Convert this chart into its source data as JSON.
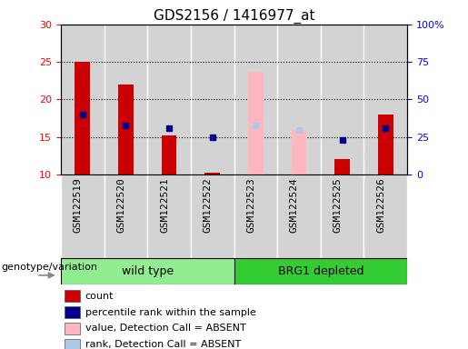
{
  "title": "GDS2156 / 1416977_at",
  "samples": [
    "GSM122519",
    "GSM122520",
    "GSM122521",
    "GSM122522",
    "GSM122523",
    "GSM122524",
    "GSM122525",
    "GSM122526"
  ],
  "ylim_left": [
    10,
    30
  ],
  "ylim_right": [
    0,
    100
  ],
  "yticks_left": [
    10,
    15,
    20,
    25,
    30
  ],
  "yticks_right": [
    0,
    25,
    50,
    75,
    100
  ],
  "ytick_labels_right": [
    "0",
    "25",
    "50",
    "75",
    "100%"
  ],
  "count_values": [
    25,
    22,
    15.2,
    10.2,
    null,
    null,
    12,
    18
  ],
  "percentile_values": [
    18,
    16.5,
    16.2,
    15,
    null,
    null,
    14.6,
    16.2
  ],
  "absent_value_values": [
    null,
    null,
    null,
    null,
    23.7,
    15.9,
    null,
    null
  ],
  "absent_rank_values": [
    null,
    null,
    null,
    null,
    16.5,
    15.9,
    null,
    null
  ],
  "bar_width": 0.35,
  "count_color": "#cc0000",
  "percentile_color": "#00008b",
  "absent_value_color": "#ffb6c1",
  "absent_rank_color": "#b0c8e8",
  "col_bg_color": "#d3d3d3",
  "plot_bg_color": "#ffffff",
  "wild_type_color": "#90ee90",
  "brg1_color": "#33cc33",
  "genotype_label": "genotype/variation",
  "group_split": 4,
  "legend_items": [
    {
      "label": "count",
      "color": "#cc0000"
    },
    {
      "label": "percentile rank within the sample",
      "color": "#00008b"
    },
    {
      "label": "value, Detection Call = ABSENT",
      "color": "#ffb6c1"
    },
    {
      "label": "rank, Detection Call = ABSENT",
      "color": "#b0c8e8"
    }
  ],
  "dotted_lines": [
    15,
    20,
    25
  ],
  "title_fontsize": 11,
  "tick_fontsize": 8,
  "legend_fontsize": 8,
  "group_fontsize": 9,
  "genotype_fontsize": 8
}
